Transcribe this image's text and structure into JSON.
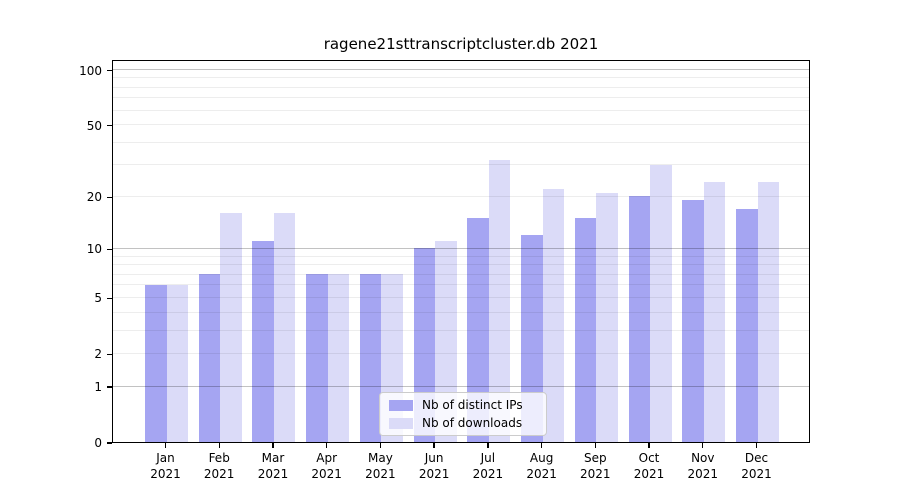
{
  "chart_data": {
    "type": "bar",
    "title": "ragene21sttranscriptcluster.db 2021",
    "categories": [
      "Jan",
      "Feb",
      "Mar",
      "Apr",
      "May",
      "Jun",
      "Jul",
      "Aug",
      "Sep",
      "Oct",
      "Nov",
      "Dec"
    ],
    "year": "2021",
    "series": [
      {
        "name": "Nb of distinct IPs",
        "key": "distinct-ips",
        "color": "#a5a5f2",
        "values": [
          6,
          7,
          11,
          7,
          7,
          10,
          15,
          12,
          15,
          20,
          19,
          17
        ]
      },
      {
        "name": "Nb of downloads",
        "key": "downloads",
        "color": "#dbdbf8",
        "values": [
          6,
          16,
          16,
          7,
          7,
          11,
          32,
          22,
          21,
          30,
          24,
          24
        ]
      }
    ],
    "y_scale": "log10(1+x)",
    "ylim": [
      0,
      114
    ],
    "y_ticks": [
      0,
      1,
      2,
      5,
      10,
      20,
      50,
      100
    ],
    "y_gridlines_major": [
      1,
      10,
      100
    ],
    "y_gridlines_minor": [
      2,
      3,
      4,
      5,
      6,
      7,
      8,
      9,
      20,
      30,
      40,
      50,
      60,
      70,
      80,
      90
    ],
    "xlabel": "",
    "ylabel": "",
    "grid": true,
    "legend_position": "lower center"
  }
}
